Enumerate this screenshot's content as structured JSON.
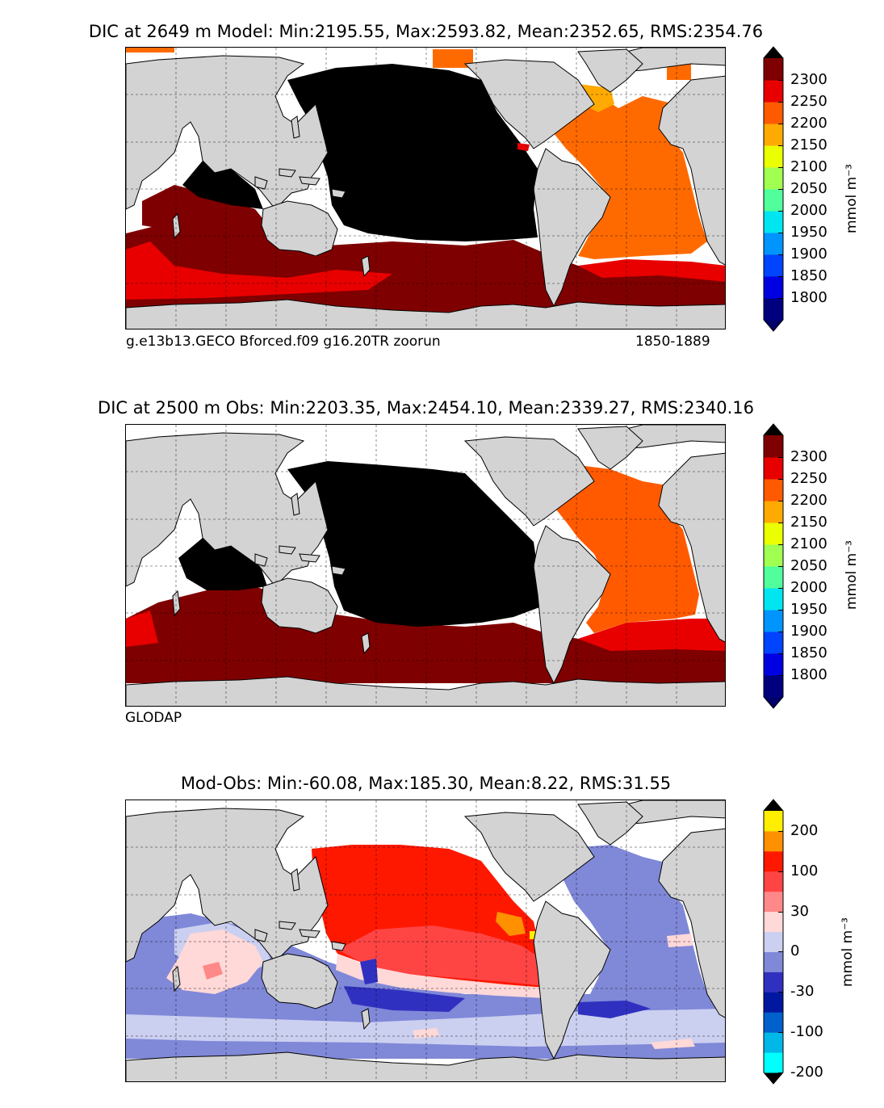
{
  "panels": {
    "model": {
      "title": "DIC at 2649 m Model: Min:2195.55, Max:2593.82, Mean:2352.65, RMS:2354.76",
      "caption_left": "g.e13b13.GECO Bforced.f09 g16.20TR zoorun",
      "caption_right": "1850-1889"
    },
    "obs": {
      "title": "DIC at 2500 m Obs: Min:2203.35, Max:2454.10, Mean:2339.27, RMS:2340.16",
      "caption_left": "GLODAP"
    },
    "diff": {
      "title": "Mod-Obs: Min:-60.08, Max:185.30, Mean:8.22, RMS:31.55"
    }
  },
  "colorbar_dic": {
    "unit": "mmol m⁻³",
    "ticks": [
      "2300",
      "2250",
      "2200",
      "2150",
      "2100",
      "2050",
      "2000",
      "1950",
      "1900",
      "1850",
      "1800"
    ],
    "colors": [
      "#00007f",
      "#0000e0",
      "#0044ff",
      "#0094ff",
      "#00e6f0",
      "#50ff9c",
      "#a0ff50",
      "#eaff00",
      "#ffaa00",
      "#ff5a00",
      "#e80000",
      "#7f0000"
    ],
    "extend_low": "#00006a",
    "extend_high": "#000000"
  },
  "colorbar_diff": {
    "unit": "mmol m⁻³",
    "ticks": [
      "200",
      "100",
      "30",
      "0",
      "-30",
      "-100",
      "-200"
    ],
    "colors": [
      "#00ffff",
      "#00b8e8",
      "#0060cc",
      "#0018a0",
      "#3030c0",
      "#8088d8",
      "#ccd0f0",
      "#ffd8d8",
      "#ff8888",
      "#ff4444",
      "#ff1800",
      "#ff9000",
      "#ffee00"
    ],
    "extend_low": "#000000",
    "extend_high": "#000000"
  },
  "map_colors": {
    "land": "#d3d3d3",
    "pacific": "#000000",
    "southern": "#7f0000",
    "atlantic_model": "#ff6a00",
    "atlantic_obs": "#ff5a00",
    "red_band": "#e80000",
    "diff_pacific": "#ff1800",
    "diff_neg": "#8088d8",
    "diff_light_neg": "#ccd0f0",
    "diff_pos_light": "#ffd8d8",
    "diff_pos_mid": "#ff4444",
    "diff_dark_neg": "#3030c0",
    "diff_orange": "#ff9000"
  }
}
